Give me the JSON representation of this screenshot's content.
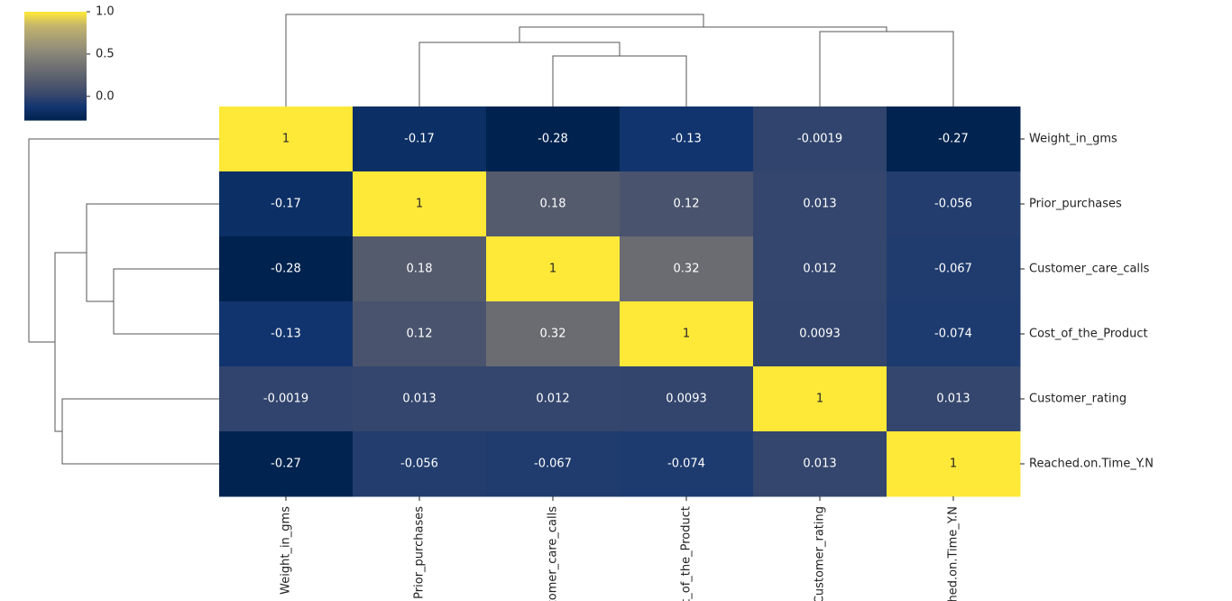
{
  "chart_data": {
    "type": "heatmap",
    "x_categories": [
      "Weight_in_gms",
      "Prior_purchases",
      "Customer_care_calls",
      "Cost_of_the_Product",
      "Customer_rating",
      "Reached.on.Time_Y.N"
    ],
    "y_categories": [
      "Weight_in_gms",
      "Prior_purchases",
      "Customer_care_calls",
      "Cost_of_the_Product",
      "Customer_rating",
      "Reached.on.Time_Y.N"
    ],
    "values": [
      [
        1,
        -0.17,
        -0.28,
        -0.13,
        -0.0019,
        -0.27
      ],
      [
        -0.17,
        1,
        0.18,
        0.12,
        0.013,
        -0.056
      ],
      [
        -0.28,
        0.18,
        1,
        0.32,
        0.012,
        -0.067
      ],
      [
        -0.13,
        0.12,
        0.32,
        1,
        0.0093,
        -0.074
      ],
      [
        -0.0019,
        0.013,
        0.012,
        0.0093,
        1,
        0.013
      ],
      [
        -0.27,
        -0.056,
        -0.067,
        -0.074,
        0.013,
        1
      ]
    ],
    "colormap": "cividis",
    "zlim": [
      -0.28,
      1
    ],
    "zticks": [
      {
        "value": 0,
        "label": "0.0"
      },
      {
        "value": 0.5,
        "label": "0.5"
      },
      {
        "value": 1,
        "label": "1.0"
      }
    ]
  }
}
